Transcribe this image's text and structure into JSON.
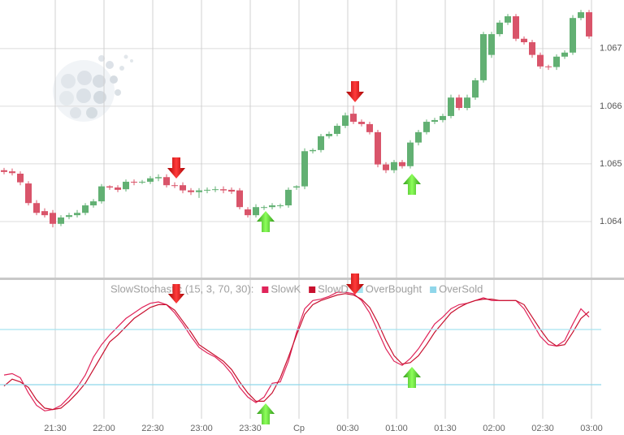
{
  "chart_data": [
    {
      "type": "candlestick",
      "open": [
        1.06489,
        1.06487,
        1.06483,
        1.06466,
        1.06432,
        1.06418,
        1.06415,
        1.06396,
        1.06408,
        1.06411,
        1.06415,
        1.06428,
        1.06435,
        1.06461,
        1.06459,
        1.06456,
        1.06469,
        1.06468,
        1.06469,
        1.06475,
        1.06477,
        1.06463,
        1.06463,
        1.06454,
        1.06451,
        1.06454,
        1.06455,
        1.06456,
        1.06455,
        1.06454,
        1.06421,
        1.06411,
        1.06424,
        1.06425,
        1.06427,
        1.06428,
        1.06459,
        1.06461,
        1.06522,
        1.06524,
        1.06548,
        1.06552,
        1.06566,
        1.06587,
        1.06573,
        1.06569,
        1.06555,
        1.06499,
        1.06489,
        1.06503,
        1.06496,
        1.06537,
        1.06555,
        1.06573,
        1.06576,
        1.06583,
        1.06615,
        1.06597,
        1.06615,
        1.06645,
        1.06689,
        1.06725,
        1.06745,
        1.06756,
        1.06717,
        1.06711,
        1.06689,
        1.06669,
        1.06668,
        1.06686,
        1.06693,
        1.06753,
        1.06763
      ],
      "high": [
        1.06493,
        1.06492,
        1.06487,
        1.0647,
        1.06437,
        1.06423,
        1.0642,
        1.06411,
        1.06415,
        1.0642,
        1.06432,
        1.06439,
        1.06465,
        1.06463,
        1.06463,
        1.06473,
        1.06473,
        1.06472,
        1.06479,
        1.06482,
        1.06482,
        1.06468,
        1.06468,
        1.06458,
        1.06458,
        1.06459,
        1.06461,
        1.06461,
        1.06459,
        1.06458,
        1.06425,
        1.0643,
        1.06428,
        1.06432,
        1.06431,
        1.06459,
        1.06463,
        1.06527,
        1.06527,
        1.06552,
        1.06556,
        1.0657,
        1.06589,
        1.06601,
        1.06577,
        1.06573,
        1.06559,
        1.06503,
        1.06507,
        1.06507,
        1.06541,
        1.06559,
        1.06577,
        1.0658,
        1.06587,
        1.0662,
        1.0662,
        1.0662,
        1.06649,
        1.06729,
        1.06729,
        1.06749,
        1.0676,
        1.0676,
        1.06721,
        1.06715,
        1.06693,
        1.06672,
        1.0669,
        1.06697,
        1.06758,
        1.06767,
        1.06767
      ],
      "low": [
        1.06482,
        1.0648,
        1.06463,
        1.06428,
        1.06411,
        1.06407,
        1.0639,
        1.06392,
        1.06404,
        1.06407,
        1.06411,
        1.06424,
        1.06431,
        1.06455,
        1.06451,
        1.06452,
        1.06463,
        1.06465,
        1.06465,
        1.0647,
        1.06459,
        1.06458,
        1.06449,
        1.06446,
        1.06441,
        1.06449,
        1.06451,
        1.06449,
        1.06448,
        1.06421,
        1.06407,
        1.06407,
        1.0642,
        1.06421,
        1.06423,
        1.06424,
        1.06455,
        1.06456,
        1.06518,
        1.0652,
        1.06544,
        1.06548,
        1.06562,
        1.06569,
        1.06565,
        1.06551,
        1.06494,
        1.06484,
        1.06484,
        1.06492,
        1.06492,
        1.06532,
        1.06551,
        1.06569,
        1.06572,
        1.06579,
        1.06593,
        1.06593,
        1.06611,
        1.06641,
        1.06684,
        1.06721,
        1.06741,
        1.06713,
        1.06707,
        1.06684,
        1.06665,
        1.06663,
        1.06663,
        1.06682,
        1.06689,
        1.06749,
        1.06717
      ],
      "close": [
        1.06486,
        1.06484,
        1.06468,
        1.06432,
        1.06415,
        1.06411,
        1.06396,
        1.06407,
        1.06411,
        1.06415,
        1.06428,
        1.06435,
        1.06461,
        1.06459,
        1.06455,
        1.06469,
        1.06468,
        1.06469,
        1.06475,
        1.06477,
        1.06463,
        1.06462,
        1.06454,
        1.06451,
        1.06454,
        1.06455,
        1.06456,
        1.06454,
        1.06452,
        1.06425,
        1.06411,
        1.06425,
        1.06425,
        1.06428,
        1.06428,
        1.06455,
        1.06461,
        1.06522,
        1.06524,
        1.06548,
        1.06552,
        1.06566,
        1.06584,
        1.06573,
        1.06569,
        1.06555,
        1.06499,
        1.06489,
        1.06503,
        1.06496,
        1.06537,
        1.06555,
        1.06573,
        1.06576,
        1.06583,
        1.06615,
        1.06597,
        1.06615,
        1.06645,
        1.06725,
        1.06725,
        1.06745,
        1.06756,
        1.06717,
        1.06711,
        1.06689,
        1.06669,
        1.06668,
        1.06686,
        1.06693,
        1.06753,
        1.06763,
        1.06721
      ],
      "up_color": "#62b073",
      "down_color": "#d9546a",
      "ylim": [
        1.063,
        1.0678
      ],
      "yticks": [
        1.064,
        1.065,
        1.066,
        1.067
      ],
      "grid": true
    },
    {
      "type": "line",
      "title": "SlowStochastic (15, 3, 70, 30):",
      "series": [
        {
          "name": "SlowK",
          "color": "#e0245a",
          "values": [
            37,
            38,
            35,
            24,
            15,
            11,
            12,
            15,
            21,
            28,
            37,
            50,
            59,
            66,
            72,
            78,
            82,
            86,
            89,
            90,
            88,
            82,
            74,
            65,
            57,
            53,
            50,
            45,
            38,
            28,
            21,
            17,
            21,
            31,
            32,
            47,
            68,
            85,
            91,
            92,
            94,
            97,
            97,
            96,
            91,
            82,
            69,
            56,
            47,
            44,
            49,
            56,
            65,
            74,
            79,
            85,
            88,
            89,
            91,
            93,
            91,
            91,
            91,
            91,
            85,
            75,
            65,
            59,
            58,
            62,
            74,
            85,
            79
          ]
        },
        {
          "name": "SlowD",
          "color": "#c8102e",
          "values": [
            29,
            34,
            32,
            28,
            19,
            13,
            12,
            13,
            18,
            24,
            31,
            41,
            51,
            61,
            66,
            72,
            78,
            82,
            86,
            88,
            88,
            84,
            76,
            68,
            59,
            55,
            51,
            47,
            41,
            32,
            24,
            18,
            18,
            24,
            35,
            50,
            66,
            81,
            88,
            91,
            93,
            95,
            96,
            95,
            92,
            86,
            75,
            62,
            51,
            45,
            46,
            51,
            59,
            68,
            75,
            82,
            86,
            89,
            91,
            92,
            92,
            91,
            91,
            91,
            88,
            79,
            70,
            62,
            58,
            59,
            68,
            78,
            83
          ]
        },
        {
          "name": "OverBought",
          "color": "#a6e3f0",
          "value": 70
        },
        {
          "name": "OverSold",
          "color": "#8fd6ea",
          "value": 30
        }
      ],
      "ylim": [
        0,
        100
      ],
      "x_labels": [
        "21:30",
        "22:00",
        "22:30",
        "23:00",
        "23:30",
        "Cp",
        "00:30",
        "01:00",
        "01:30",
        "02:00",
        "02:30",
        "03:00"
      ]
    }
  ]
}
